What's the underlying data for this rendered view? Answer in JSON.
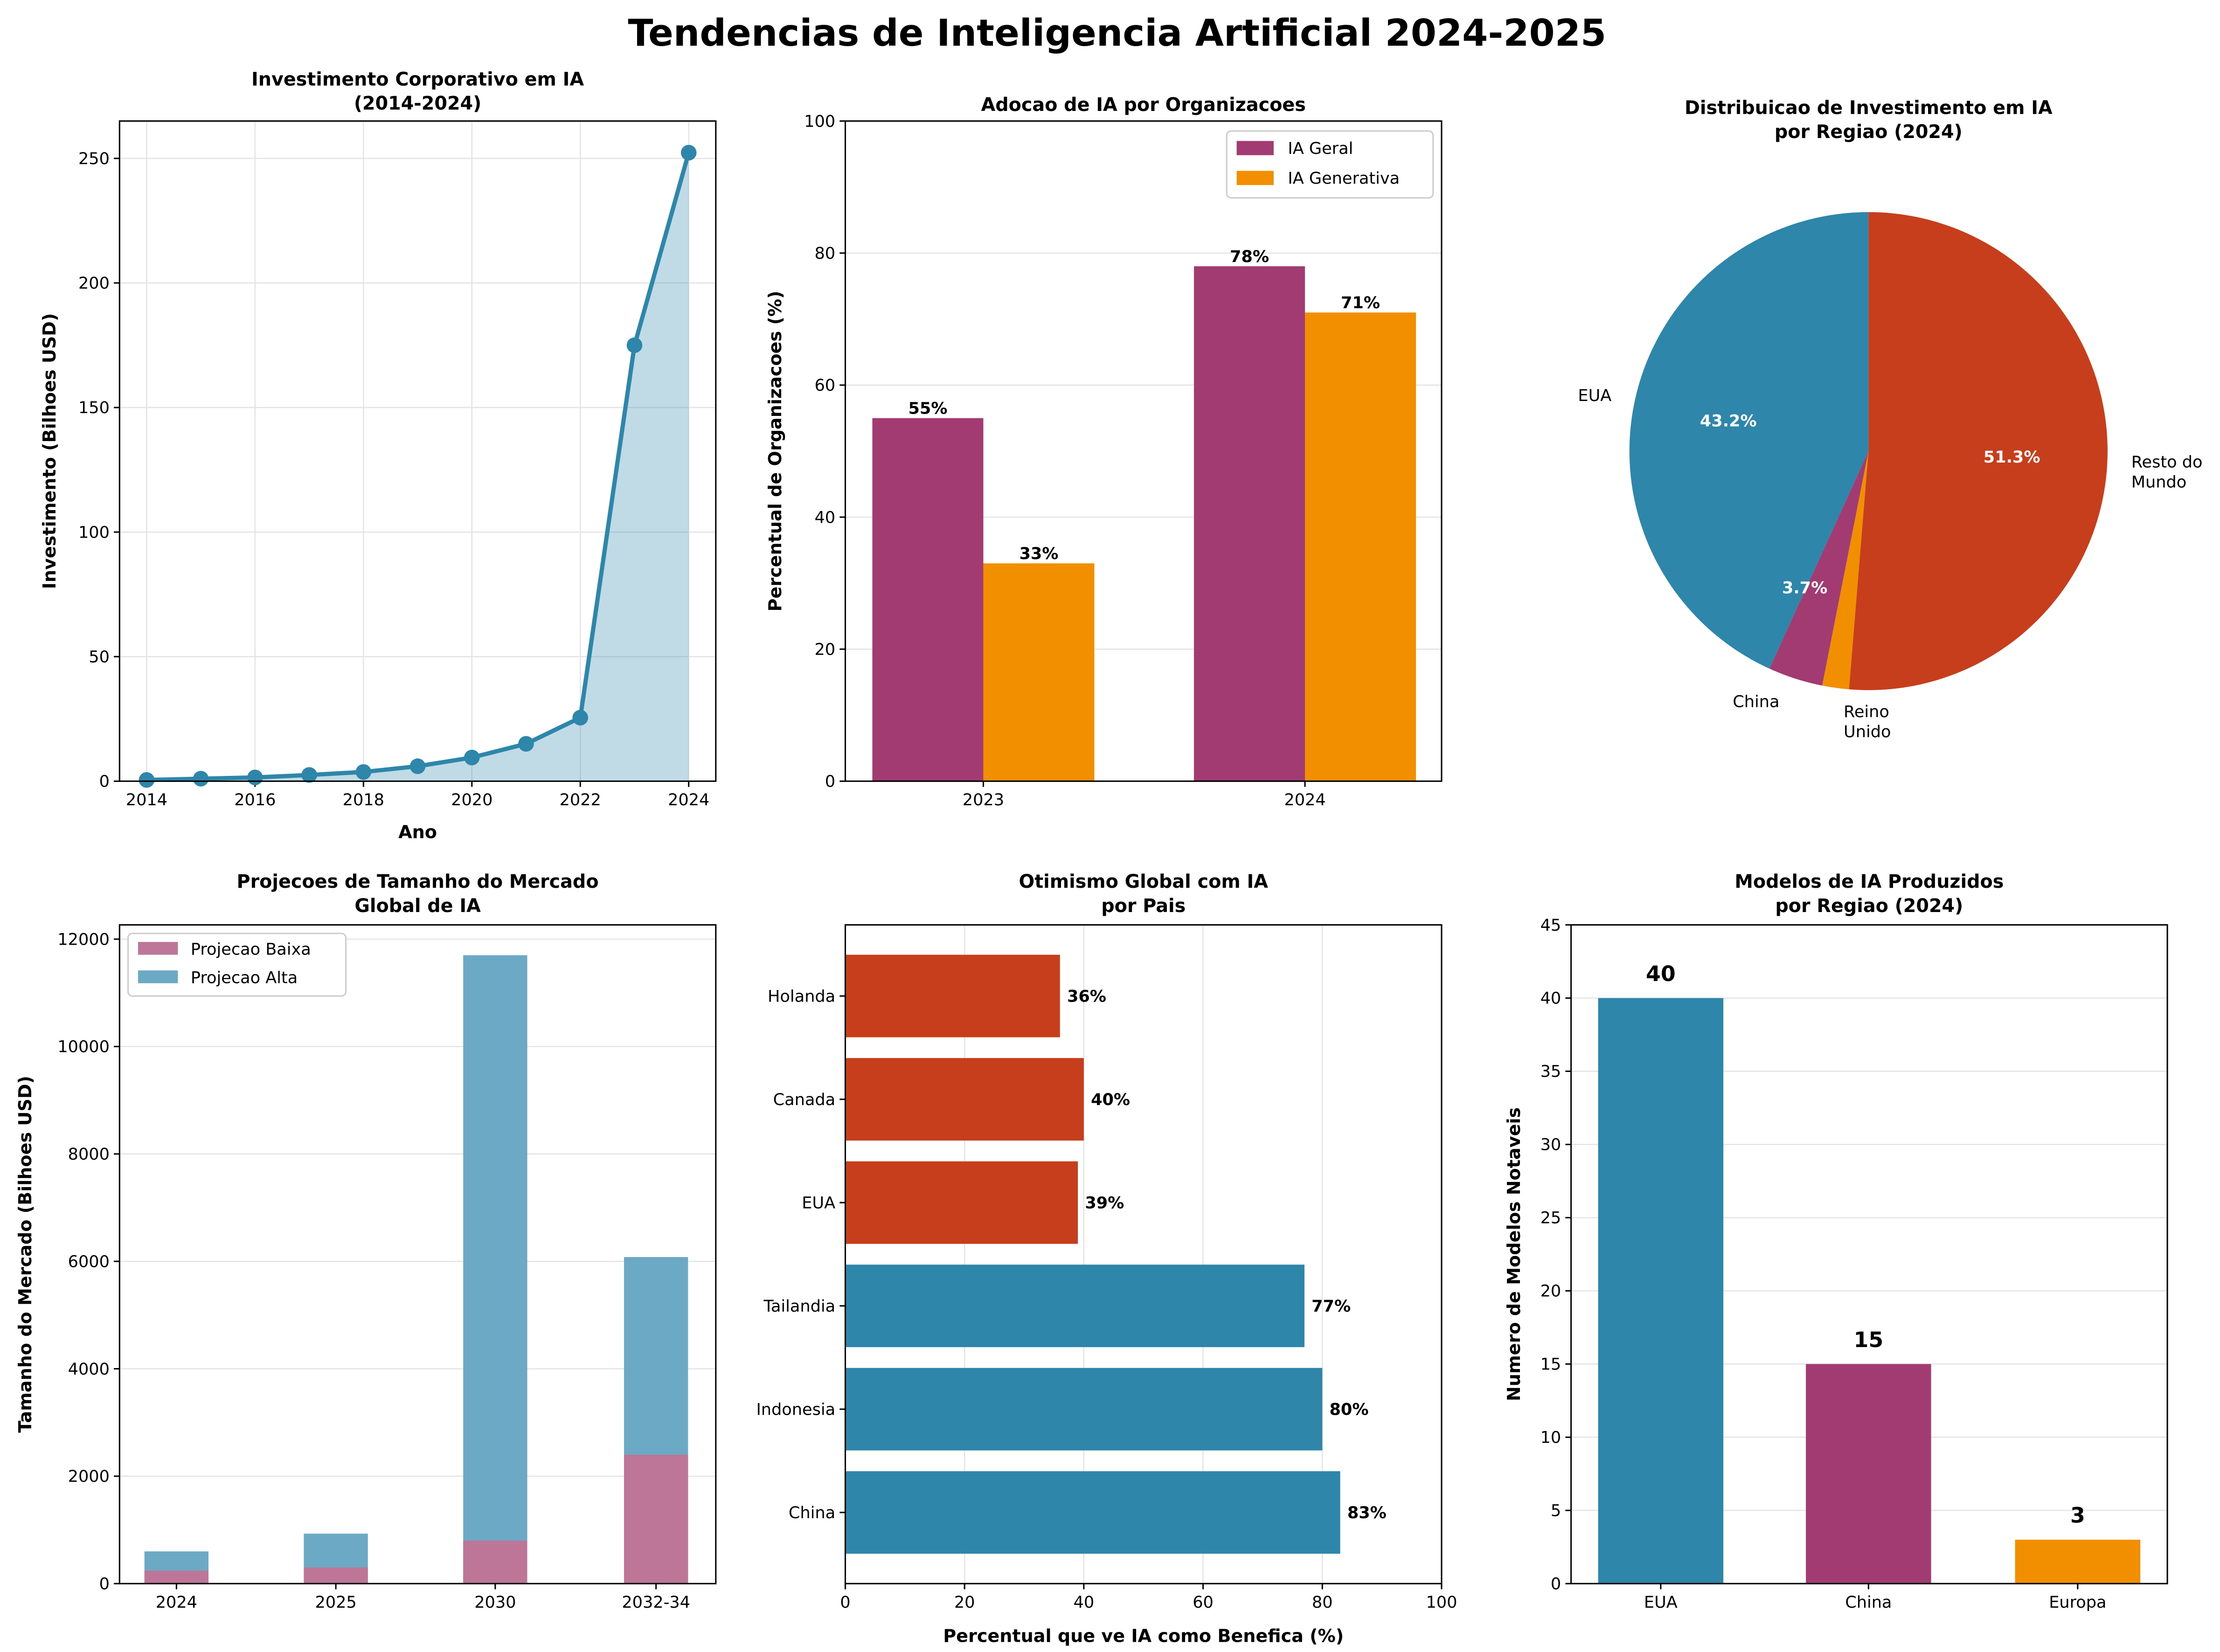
{
  "title": "Tendencias de Inteligencia Artificial 2024-2025",
  "chart_data": [
    {
      "type": "line",
      "title": "Investimento Corporativo em IA\n(2014-2024)",
      "xlabel": "Ano",
      "ylabel": "Investimento (Bilhoes USD)",
      "x": [
        2014,
        2015,
        2016,
        2017,
        2018,
        2019,
        2020,
        2021,
        2022,
        2023,
        2024
      ],
      "y": [
        0.5,
        1,
        1.5,
        2.5,
        3.7,
        6,
        9.5,
        15,
        25.5,
        175,
        252.3
      ],
      "xticks": [
        2014,
        2016,
        2018,
        2020,
        2022,
        2024
      ],
      "yticks": [
        0,
        50,
        100,
        150,
        200,
        250
      ],
      "xlim": [
        2013.5,
        2024.5
      ],
      "ylim": [
        0,
        265
      ],
      "grid": true,
      "fill_under": true,
      "color": "#2e86ab"
    },
    {
      "type": "bar",
      "title": "Adocao de IA por Organizacoes",
      "xlabel": "",
      "ylabel": "Percentual de Organizacoes (%)",
      "categories": [
        "2023",
        "2024"
      ],
      "series": [
        {
          "name": "IA Geral",
          "values": [
            55,
            78
          ],
          "color": "#a23b72"
        },
        {
          "name": "IA Generativa",
          "values": [
            33,
            71
          ],
          "color": "#f18f01"
        }
      ],
      "data_labels": [
        [
          "55%",
          "78%"
        ],
        [
          "33%",
          "71%"
        ]
      ],
      "yticks": [
        0,
        20,
        40,
        60,
        80,
        100
      ],
      "ylim": [
        0,
        100
      ],
      "grid": true,
      "legend": "top-right"
    },
    {
      "type": "pie",
      "title": "Distribuicao de Investimento em IA\npor Regiao (2024)",
      "labels": [
        "EUA",
        "China",
        "Reino\nUnido",
        "Resto do\nMundo"
      ],
      "values": [
        43.2,
        3.7,
        1.8,
        51.3
      ],
      "pct_labels": [
        "43.2%",
        "3.7%",
        "1.8%",
        "51.3%"
      ],
      "colors": [
        "#2e86ab",
        "#a23b72",
        "#f18f01",
        "#c73e1d"
      ]
    },
    {
      "type": "bar",
      "title": "Projecoes de Tamanho do Mercado\nGlobal de IA",
      "xlabel": "",
      "ylabel": "Tamanho do Mercado (Bilhoes USD)",
      "categories": [
        "2024",
        "2025",
        "2030",
        "2032-34"
      ],
      "series": [
        {
          "name": "Projecao Baixa",
          "values": [
            240,
            300,
            800,
            2400
          ],
          "color": "#bd7598"
        },
        {
          "name": "Projecao Alta",
          "values": [
            600,
            930,
            11700,
            6080
          ],
          "color": "#6ca9c4"
        }
      ],
      "yticks": [
        0,
        2000,
        4000,
        6000,
        8000,
        10000,
        12000
      ],
      "ylim": [
        0,
        12265
      ],
      "grid": true,
      "legend": "top-left"
    },
    {
      "type": "bar",
      "orientation": "horizontal",
      "title": "Otimismo Global com IA\npor Pais",
      "xlabel": "Percentual que ve IA como Benefica (%)",
      "ylabel": "",
      "categories": [
        "China",
        "Indonesia",
        "Tailandia",
        "EUA",
        "Canada",
        "Holanda"
      ],
      "values": [
        83,
        80,
        77,
        39,
        40,
        36
      ],
      "data_labels": [
        "83%",
        "80%",
        "77%",
        "39%",
        "40%",
        "36%"
      ],
      "colors": [
        "#2e86ab",
        "#2e86ab",
        "#2e86ab",
        "#c73e1d",
        "#c73e1d",
        "#c73e1d"
      ],
      "xticks": [
        0,
        20,
        40,
        60,
        80,
        100
      ],
      "xlim": [
        0,
        100
      ],
      "grid": true
    },
    {
      "type": "bar",
      "title": "Modelos de IA Produzidos\npor Regiao (2024)",
      "xlabel": "",
      "ylabel": "Numero de Modelos Notaveis",
      "categories": [
        "EUA",
        "China",
        "Europa"
      ],
      "values": [
        40,
        15,
        3
      ],
      "data_labels": [
        "40",
        "15",
        "3"
      ],
      "colors": [
        "#2e86ab",
        "#a23b72",
        "#f18f01"
      ],
      "yticks": [
        0,
        5,
        10,
        15,
        20,
        25,
        30,
        35,
        40,
        45
      ],
      "ylim": [
        0,
        45
      ],
      "grid": true
    }
  ]
}
